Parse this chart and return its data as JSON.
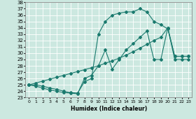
{
  "xlabel": "Humidex (Indice chaleur)",
  "bg_color": "#cce8e0",
  "grid_color": "#ffffff",
  "line_color": "#1a7a6e",
  "xlim": [
    -0.5,
    23.5
  ],
  "ylim": [
    23,
    38
  ],
  "upper_x": [
    0,
    1,
    2,
    3,
    4,
    5,
    6,
    7,
    8,
    9,
    10,
    11,
    12,
    13,
    14,
    15,
    16,
    17,
    18,
    19,
    20,
    21,
    22,
    23
  ],
  "upper_y": [
    25.0,
    25.0,
    24.8,
    24.5,
    24.3,
    24.0,
    23.8,
    23.7,
    25.5,
    26.0,
    33.0,
    35.0,
    36.0,
    36.3,
    36.5,
    36.5,
    37.0,
    36.5,
    35.0,
    34.5,
    33.8,
    29.5,
    29.5,
    29.5
  ],
  "lower_x": [
    0,
    1,
    2,
    3,
    4,
    5,
    6,
    7,
    8,
    9,
    10,
    11,
    12,
    13,
    14,
    15,
    16,
    17,
    18,
    19,
    20,
    21,
    22,
    23
  ],
  "lower_y": [
    25.0,
    24.8,
    24.5,
    24.2,
    24.0,
    23.8,
    23.7,
    23.6,
    26.0,
    26.5,
    28.0,
    30.5,
    27.5,
    29.0,
    30.5,
    31.5,
    32.5,
    33.5,
    29.0,
    29.0,
    34.0,
    29.0,
    29.0,
    29.0
  ],
  "diag_x": [
    0,
    1,
    2,
    3,
    4,
    5,
    6,
    7,
    8,
    9,
    10,
    11,
    12,
    13,
    14,
    15,
    16,
    17,
    18,
    19,
    20,
    21,
    22,
    23
  ],
  "diag_y": [
    25.0,
    25.3,
    25.6,
    25.9,
    26.2,
    26.5,
    26.8,
    27.1,
    27.4,
    27.7,
    28.0,
    28.4,
    28.8,
    29.2,
    29.7,
    30.2,
    30.8,
    31.4,
    32.0,
    32.5,
    34.0,
    29.5,
    29.5,
    29.5
  ],
  "xlabel_fontsize": 5.5,
  "tick_fontsize": 5.0,
  "linewidth": 0.8,
  "markersize": 2.0
}
